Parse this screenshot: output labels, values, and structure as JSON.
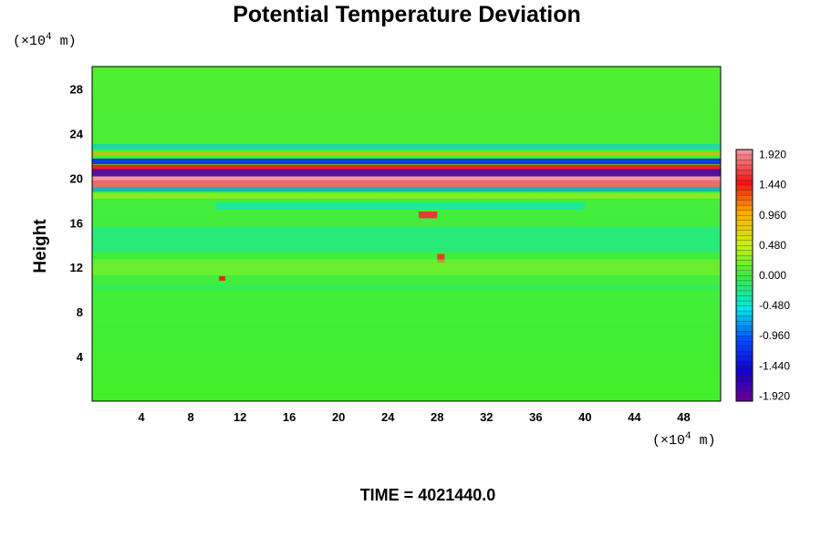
{
  "chart_data": {
    "type": "heatmap",
    "title": "Potential Temperature Deviation",
    "ylabel": "Height",
    "x_unit_prefix": "(×10",
    "x_unit_exp": "4",
    "x_unit_suffix": " m)",
    "y_unit_prefix": "(×10",
    "y_unit_exp": "4",
    "y_unit_suffix": " m)",
    "xlim": [
      0,
      51
    ],
    "ylim": [
      0,
      30
    ],
    "xticks": [
      4,
      8,
      12,
      16,
      20,
      24,
      28,
      32,
      36,
      40,
      44,
      48
    ],
    "yticks": [
      4,
      8,
      12,
      16,
      20,
      24,
      28
    ],
    "colorbar": {
      "min": -2.0,
      "max": 2.0,
      "tick_labels": [
        "1.920",
        "1.440",
        "0.960",
        "0.480",
        "0.000",
        "-0.480",
        "-0.960",
        "-1.440",
        "-1.920"
      ],
      "tick_values": [
        1.92,
        1.44,
        0.96,
        0.48,
        0.0,
        -0.48,
        -0.96,
        -1.44,
        -1.92
      ]
    },
    "field": [
      {
        "y_center": 20.0,
        "x_start": 0,
        "x_end": 51,
        "thickness": 0.5,
        "value": 2.0
      },
      {
        "y_center": 19.5,
        "x_start": 0,
        "x_end": 51,
        "thickness": 0.6,
        "value": 1.8
      },
      {
        "y_center": 20.5,
        "x_start": 0,
        "x_end": 51,
        "thickness": 0.7,
        "value": -1.9
      },
      {
        "y_center": 21.0,
        "x_start": 0,
        "x_end": 51,
        "thickness": 0.4,
        "value": 1.5
      },
      {
        "y_center": 21.5,
        "x_start": 0,
        "x_end": 51,
        "thickness": 0.5,
        "value": -1.2
      },
      {
        "y_center": 22.2,
        "x_start": 0,
        "x_end": 51,
        "thickness": 0.4,
        "value": 1.0
      },
      {
        "y_center": 22.8,
        "x_start": 0,
        "x_end": 51,
        "thickness": 0.5,
        "value": -0.6
      },
      {
        "y_center": 19.0,
        "x_start": 0,
        "x_end": 51,
        "thickness": 0.4,
        "value": -0.8
      },
      {
        "y_center": 18.4,
        "x_start": 0,
        "x_end": 51,
        "thickness": 0.5,
        "value": 0.4
      },
      {
        "y_center": 17.5,
        "x_start": 10,
        "x_end": 40,
        "thickness": 0.6,
        "value": -0.5
      },
      {
        "y_center": 16.7,
        "x_start": 26.5,
        "x_end": 28,
        "thickness": 0.6,
        "value": 1.6
      },
      {
        "y_center": 12.8,
        "x_start": 28,
        "x_end": 28.6,
        "thickness": 0.8,
        "value": 1.6
      },
      {
        "y_center": 14.5,
        "x_start": 0,
        "x_end": 51,
        "thickness": 2.2,
        "value": -0.3
      },
      {
        "y_center": 12.0,
        "x_start": 0,
        "x_end": 51,
        "thickness": 1.4,
        "value": 0.25
      },
      {
        "y_center": 11.0,
        "x_start": 10.3,
        "x_end": 10.8,
        "thickness": 0.4,
        "value": 1.5
      },
      {
        "y_center": 10.2,
        "x_start": 0,
        "x_end": 51,
        "thickness": 0.5,
        "value": -0.15
      }
    ]
  },
  "footer": {
    "time_text": "TIME = 4021440.0"
  }
}
